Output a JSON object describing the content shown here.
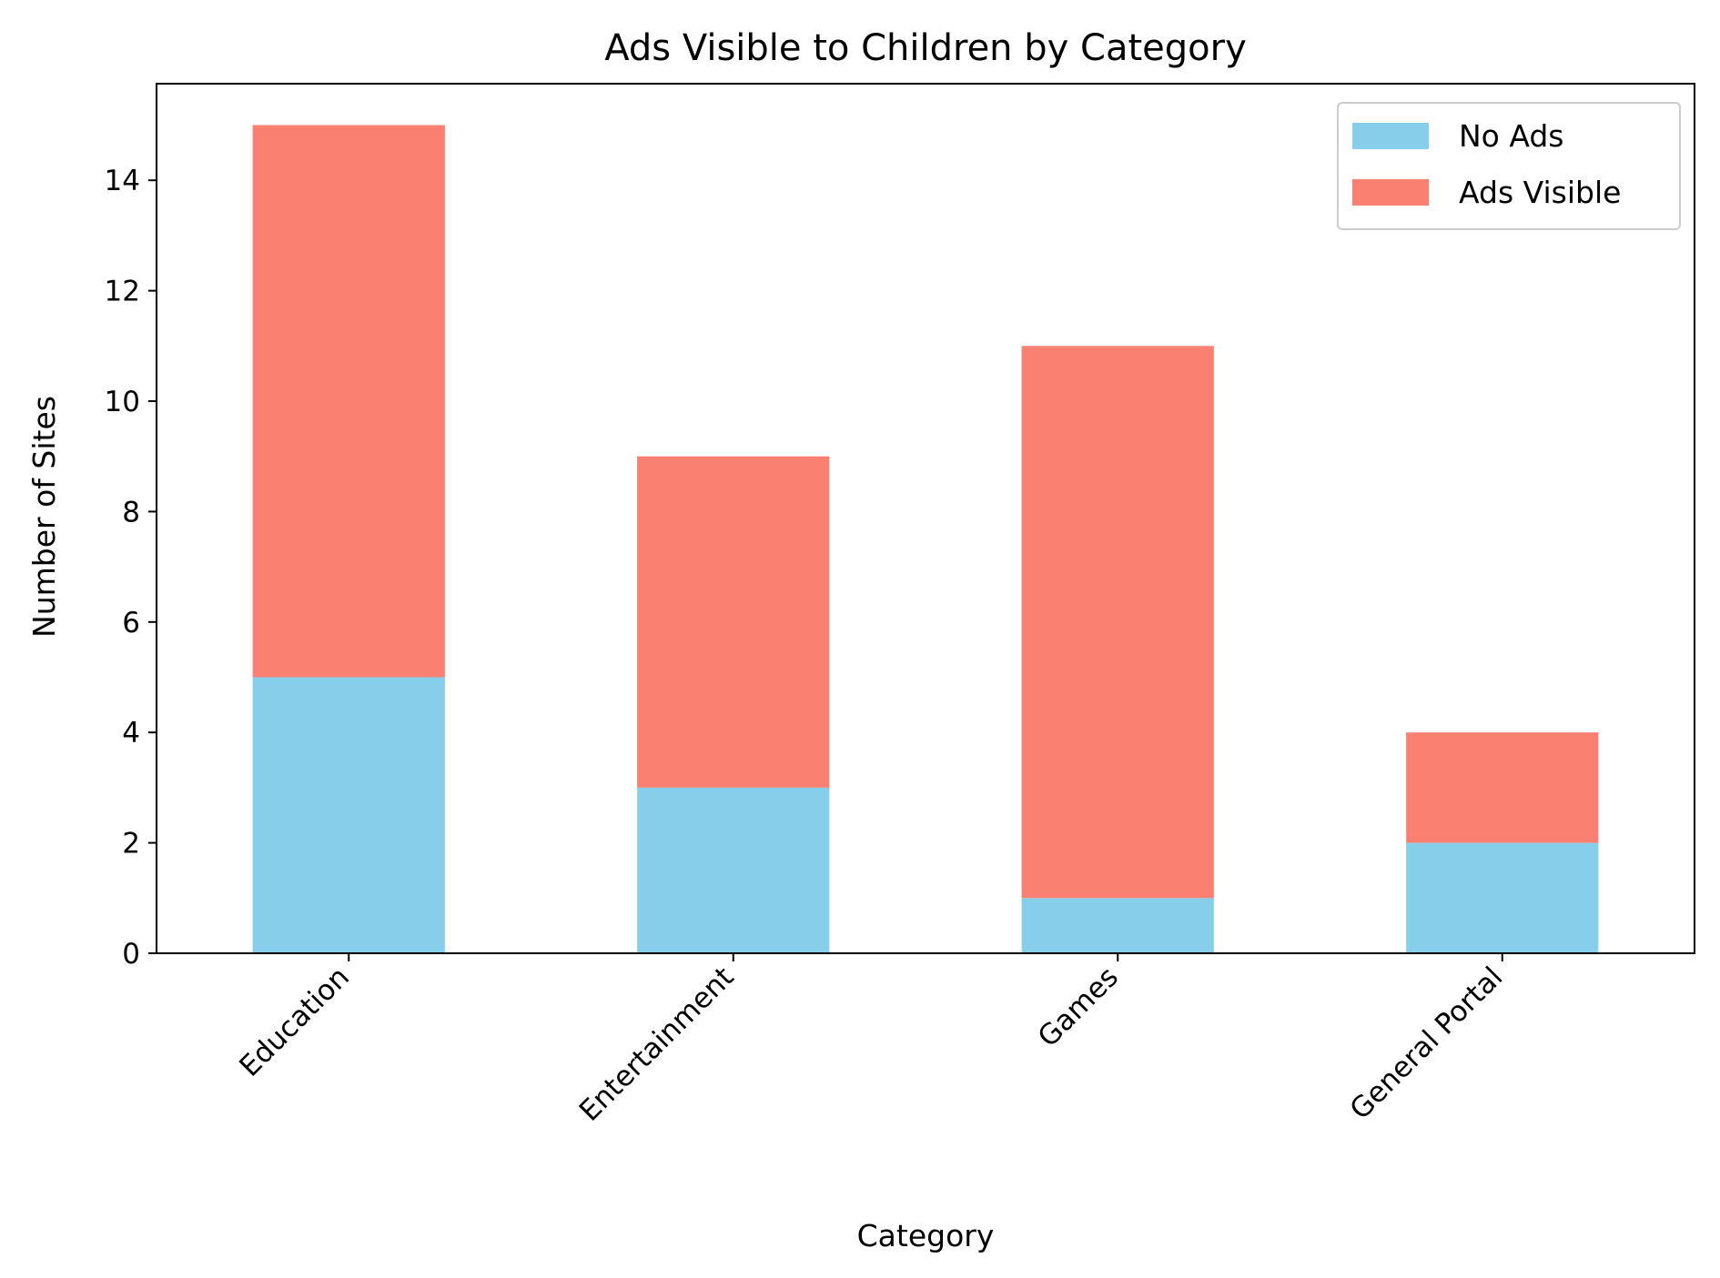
{
  "chart_data": {
    "type": "bar",
    "stacked": true,
    "title": "Ads Visible to Children by Category",
    "xlabel": "Category",
    "ylabel": "Number of Sites",
    "categories": [
      "Education",
      "Entertainment",
      "Games",
      "General Portal"
    ],
    "series": [
      {
        "name": "No Ads",
        "values": [
          5,
          3,
          1,
          2
        ],
        "color": "#87CEEB"
      },
      {
        "name": "Ads Visible",
        "values": [
          10,
          6,
          10,
          2
        ],
        "color": "#FA8072"
      }
    ],
    "ylim": [
      0,
      15.75
    ],
    "yticks": [
      0,
      2,
      4,
      6,
      8,
      10,
      12,
      14
    ],
    "grid": false,
    "legend_position": "top-right"
  }
}
